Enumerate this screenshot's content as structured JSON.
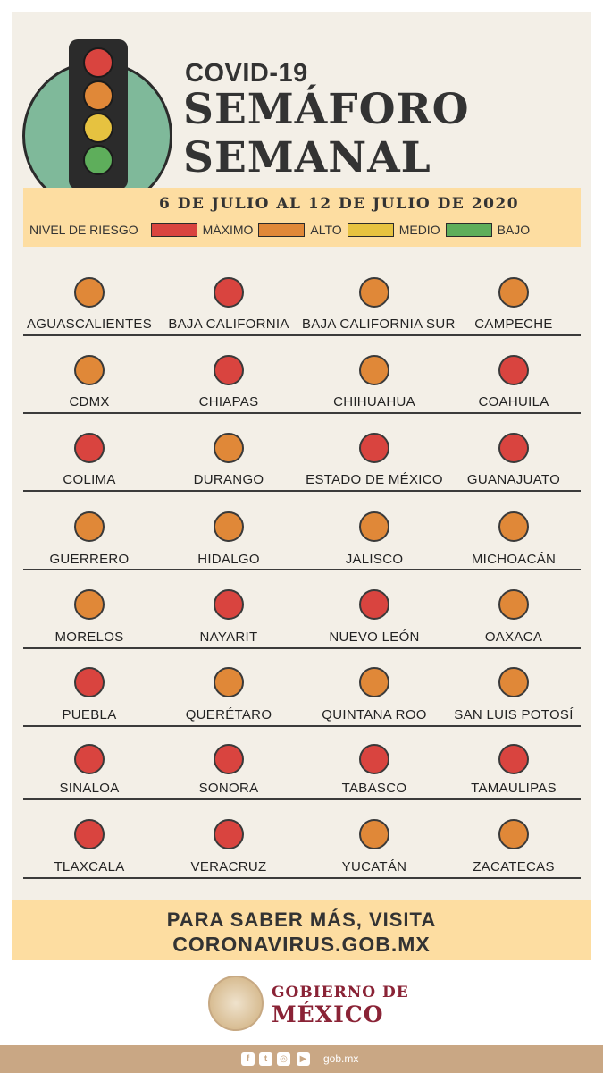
{
  "colors": {
    "maximo": "#d9443f",
    "alto": "#e08838",
    "medio": "#e6c240",
    "bajo": "#5eae5b"
  },
  "header": {
    "subtitle": "COVID-19",
    "title_line1": "SEMÁFORO",
    "title_line2": "SEMANAL",
    "date_range": "6 DE JULIO AL 12 DE JULIO DE 2020"
  },
  "legend": {
    "label": "NIVEL DE RIESGO",
    "items": [
      {
        "label": "MÁXIMO",
        "level": "maximo"
      },
      {
        "label": "ALTO",
        "level": "alto"
      },
      {
        "label": "MEDIO",
        "level": "medio"
      },
      {
        "label": "BAJO",
        "level": "bajo"
      }
    ]
  },
  "states": [
    {
      "name": "AGUASCALIENTES",
      "level": "alto"
    },
    {
      "name": "BAJA CALIFORNIA",
      "level": "maximo"
    },
    {
      "name": "BAJA CALIFORNIA SUR",
      "level": "alto"
    },
    {
      "name": "CAMPECHE",
      "level": "alto"
    },
    {
      "name": "CDMX",
      "level": "alto"
    },
    {
      "name": "CHIAPAS",
      "level": "maximo"
    },
    {
      "name": "CHIHUAHUA",
      "level": "alto"
    },
    {
      "name": "COAHUILA",
      "level": "maximo"
    },
    {
      "name": "COLIMA",
      "level": "maximo"
    },
    {
      "name": "DURANGO",
      "level": "alto"
    },
    {
      "name": "ESTADO DE MÉXICO",
      "level": "maximo"
    },
    {
      "name": "GUANAJUATO",
      "level": "maximo"
    },
    {
      "name": "GUERRERO",
      "level": "alto"
    },
    {
      "name": "HIDALGO",
      "level": "alto"
    },
    {
      "name": "JALISCO",
      "level": "alto"
    },
    {
      "name": "MICHOACÁN",
      "level": "alto"
    },
    {
      "name": "MORELOS",
      "level": "alto"
    },
    {
      "name": "NAYARIT",
      "level": "maximo"
    },
    {
      "name": "NUEVO LEÓN",
      "level": "maximo"
    },
    {
      "name": "OAXACA",
      "level": "alto"
    },
    {
      "name": "PUEBLA",
      "level": "maximo"
    },
    {
      "name": "QUERÉTARO",
      "level": "alto"
    },
    {
      "name": "QUINTANA ROO",
      "level": "alto"
    },
    {
      "name": "SAN LUIS POTOSÍ",
      "level": "alto"
    },
    {
      "name": "SINALOA",
      "level": "maximo"
    },
    {
      "name": "SONORA",
      "level": "maximo"
    },
    {
      "name": "TABASCO",
      "level": "maximo"
    },
    {
      "name": "TAMAULIPAS",
      "level": "maximo"
    },
    {
      "name": "TLAXCALA",
      "level": "maximo"
    },
    {
      "name": "VERACRUZ",
      "level": "maximo"
    },
    {
      "name": "YUCATÁN",
      "level": "alto"
    },
    {
      "name": "ZACATECAS",
      "level": "alto"
    }
  ],
  "footer": {
    "line1": "PARA SABER MÁS, VISITA",
    "line2": "CORONAVIRUS.GOB.MX",
    "gov_line1": "GOBIERNO DE",
    "gov_line2": "MÉXICO",
    "site": "gob.mx",
    "social_icons": [
      "facebook-icon",
      "twitter-icon",
      "instagram-icon",
      "youtube-icon"
    ]
  }
}
